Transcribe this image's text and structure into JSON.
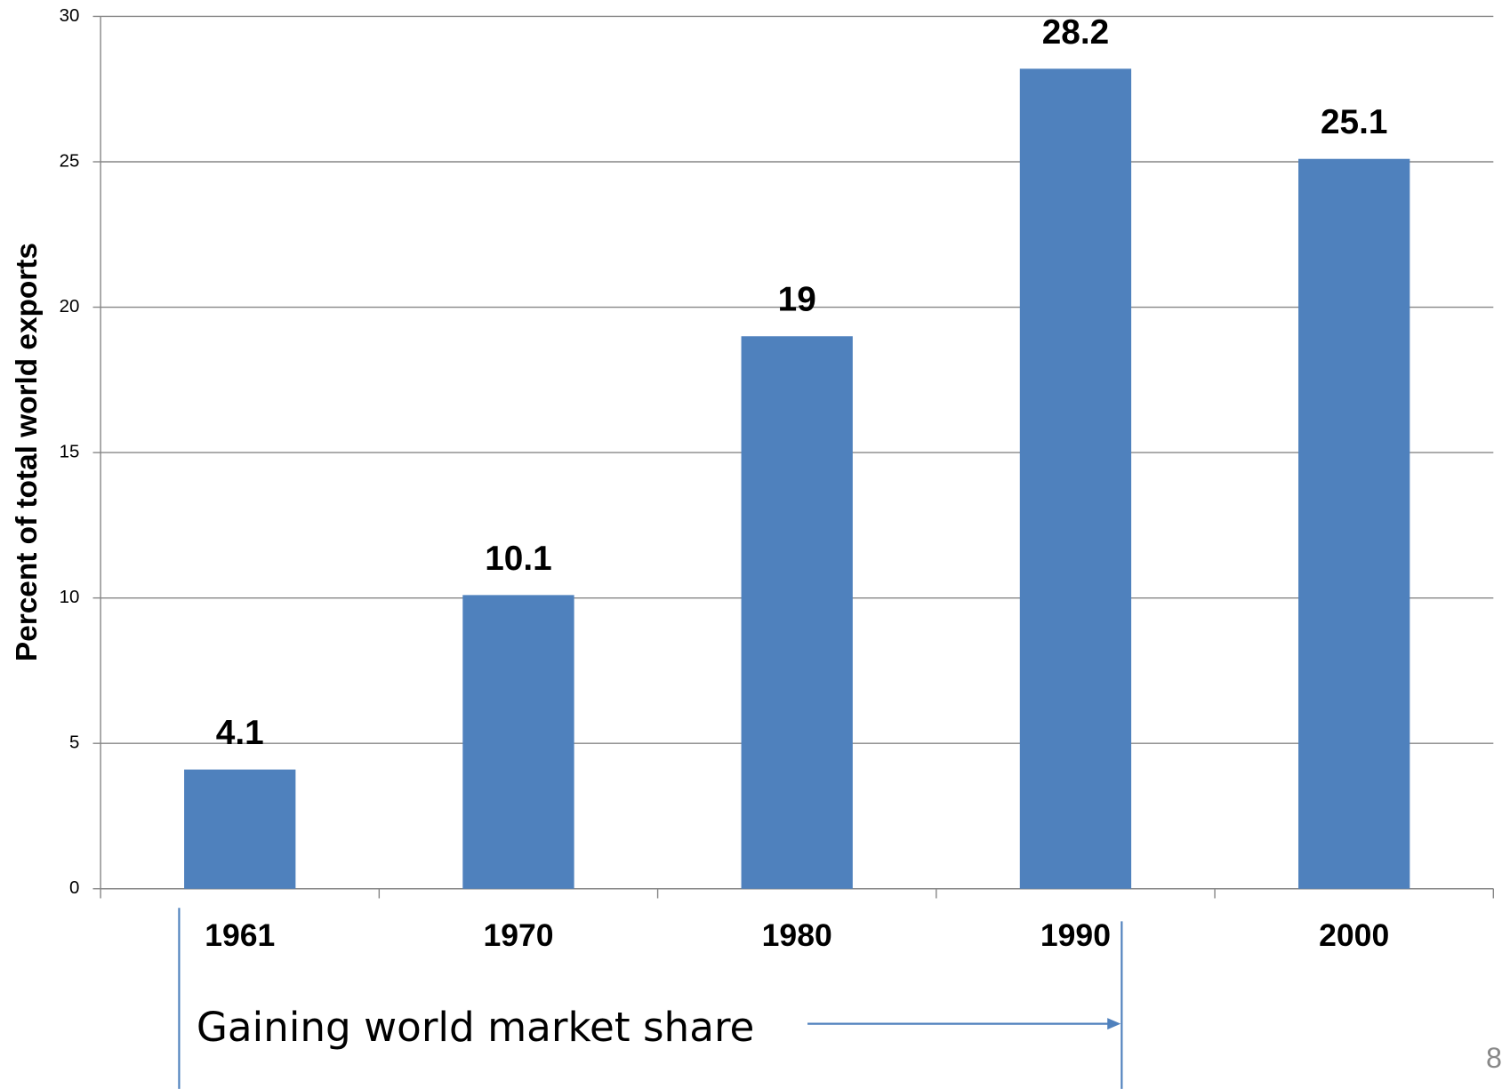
{
  "chart_data": {
    "type": "bar",
    "ylabel": "Percent of total world exports",
    "categories": [
      "1961",
      "1970",
      "1980",
      "1990",
      "2000"
    ],
    "values": [
      4.1,
      10.1,
      19,
      28.2,
      25.1
    ],
    "color": "#4f81bd",
    "ylim": [
      0,
      30
    ],
    "yticks": [
      0,
      5,
      10,
      15,
      20,
      25,
      30
    ],
    "grid": true,
    "annotation": "Gaining world market share",
    "page_number": "8"
  }
}
